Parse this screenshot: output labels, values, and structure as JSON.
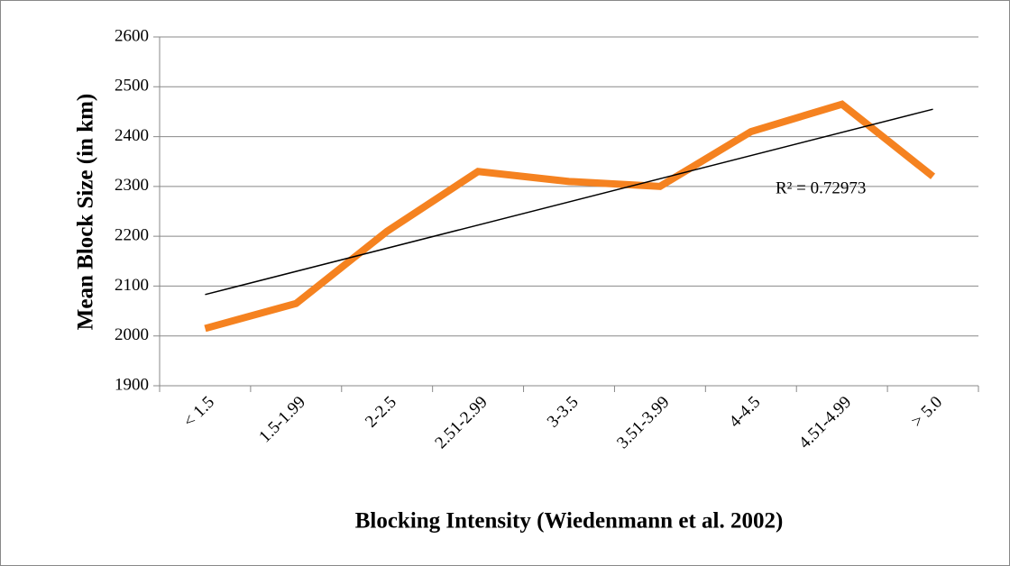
{
  "chart_data": {
    "type": "line",
    "x_label": "Blocking Intensity (Wiedenmann et al. 2002)",
    "y_label": "Mean Block Size (in km)",
    "categories": [
      "< 1.5",
      "1.5-1.99",
      "2-2.5",
      "2.51-2.99",
      "3-3.5",
      "3.51-3.99",
      "4-4.5",
      "4.51-4.99",
      "> 5.0"
    ],
    "values": [
      2015,
      2065,
      2210,
      2330,
      2310,
      2300,
      2410,
      2465,
      2320
    ],
    "color": "#f58220",
    "trendline": {
      "values": [
        2083,
        2455
      ],
      "label": "R² = 0.72973",
      "color": "#000000"
    },
    "ylim": [
      1900,
      2600
    ],
    "yticks": [
      1900,
      2000,
      2100,
      2200,
      2300,
      2400,
      2500,
      2600
    ],
    "grid": true
  }
}
